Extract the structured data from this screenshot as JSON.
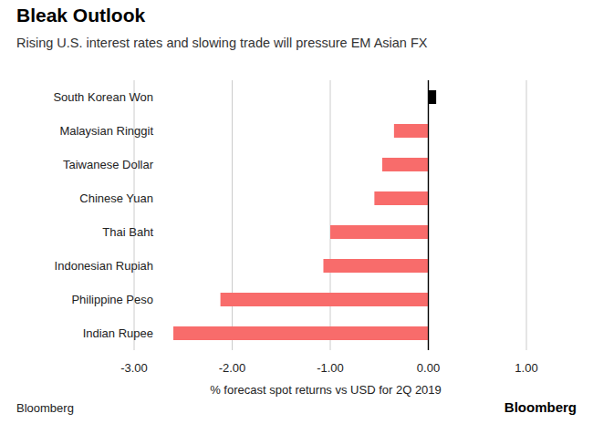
{
  "chart_data": {
    "type": "bar",
    "orientation": "horizontal",
    "title": "Bleak Outlook",
    "subtitle": "Rising U.S. interest rates and slowing trade will pressure EM Asian FX",
    "x_label": "% forecast spot returns vs USD for 2Q 2019",
    "source": "Bloomberg",
    "credit": "Bloomberg",
    "categories": [
      "South Korean Won",
      "Malaysian Ringgit",
      "Taiwanese Dollar",
      "Chinese Yuan",
      "Thai Baht",
      "Indonesian Rupiah",
      "Philippine Peso",
      "Indian Rupee"
    ],
    "values": [
      0.08,
      -0.35,
      -0.47,
      -0.55,
      -1.0,
      -1.07,
      -2.12,
      -2.6
    ],
    "colors": [
      "#000000",
      "#f86c6b",
      "#f86c6b",
      "#f86c6b",
      "#f86c6b",
      "#f86c6b",
      "#f86c6b",
      "#f86c6b"
    ],
    "xlim": [
      -3,
      1
    ],
    "xticks": [
      {
        "value": -3,
        "label": "-3.00"
      },
      {
        "value": -2,
        "label": "-2.00"
      },
      {
        "value": -1,
        "label": "-1.00"
      },
      {
        "value": 0,
        "label": "0.00"
      },
      {
        "value": 1,
        "label": "1.00"
      }
    ],
    "grid": true
  }
}
